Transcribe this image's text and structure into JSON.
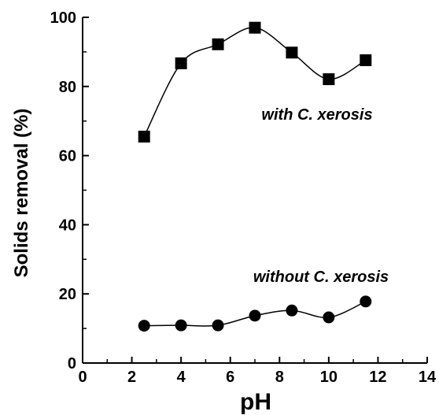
{
  "chart_data": {
    "type": "scatter",
    "title": "",
    "xlabel": "pH",
    "ylabel": "Solids removal (%)",
    "xlim": [
      0,
      14
    ],
    "ylim": [
      0,
      100
    ],
    "xticks": [
      0,
      2,
      4,
      6,
      8,
      10,
      12,
      14
    ],
    "yticks": [
      0,
      20,
      40,
      60,
      80,
      100
    ],
    "grid": false,
    "x": [
      2.5,
      4,
      5.5,
      7,
      8.5,
      10,
      11.5
    ],
    "series": [
      {
        "name": "with C. xerosis",
        "marker": "square",
        "color": "#000000",
        "values": [
          65.5,
          86.7,
          92.2,
          97.0,
          89.8,
          82.1,
          87.6
        ]
      },
      {
        "name": "without C. xerosis",
        "marker": "circle",
        "color": "#000000",
        "values": [
          10.8,
          10.9,
          10.9,
          13.7,
          15.2,
          13.2,
          17.8
        ]
      }
    ],
    "annotations": [
      "with C. xerosis",
      "without C. xerosis"
    ]
  }
}
